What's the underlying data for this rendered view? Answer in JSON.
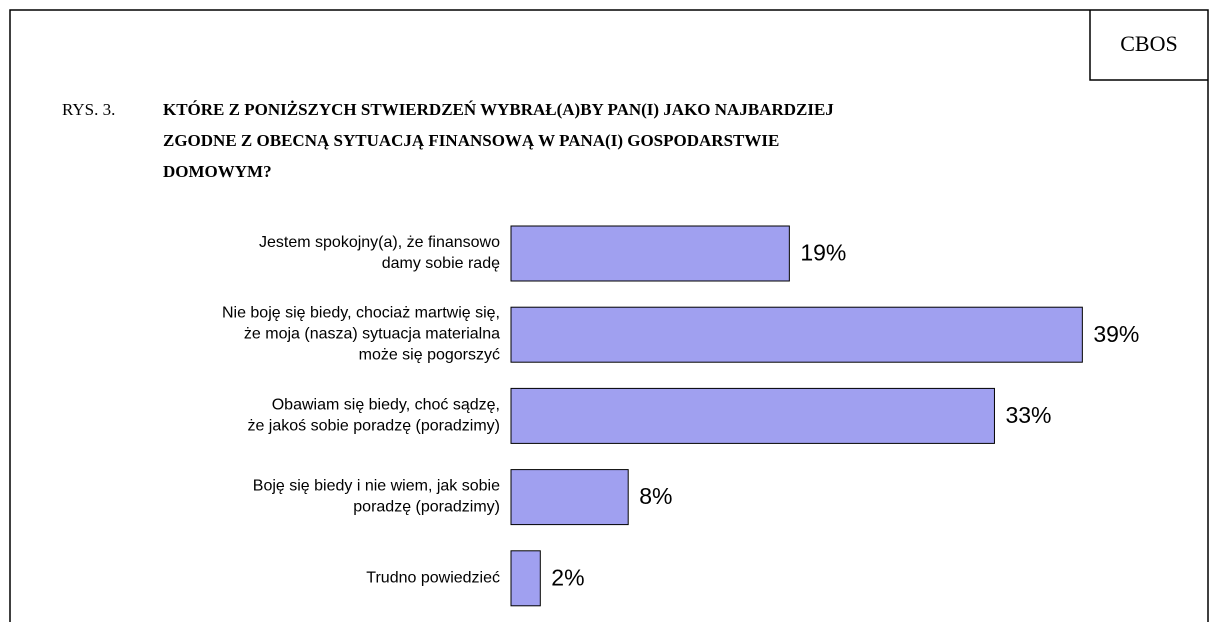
{
  "source": "CBOS",
  "chart_data": {
    "type": "bar",
    "orientation": "horizontal",
    "figure_label": "RYS. 3.",
    "title": "KTÓRE Z PONIŻSZYCH STWIERDZEŃ WYBRAŁ(A)BY PAN(I) JAKO NAJBARDZIEJ\nZGODNE Z OBECNĄ SYTUACJĄ FINANSOWĄ W PANA(I) GOSPODARSTWIE\nDOMOWYM?",
    "categories": [
      "Jestem spokojny(a), że finansowo\ndamy sobie radę",
      "Nie boję się biedy, chociaż martwię się,\nże moja (nasza) sytuacja materialna\nmoże się pogorszyć",
      "Obawiam się biedy, choć sądzę,\nże jakoś sobie poradzę (poradzimy)",
      "Boję się biedy i nie wiem, jak sobie\nporadzę (poradzimy)",
      "Trudno powiedzieć"
    ],
    "values": [
      19,
      39,
      33,
      8,
      2
    ],
    "value_labels": [
      "19%",
      "39%",
      "33%",
      "8%",
      "2%"
    ],
    "color": "#a0a0f0"
  }
}
